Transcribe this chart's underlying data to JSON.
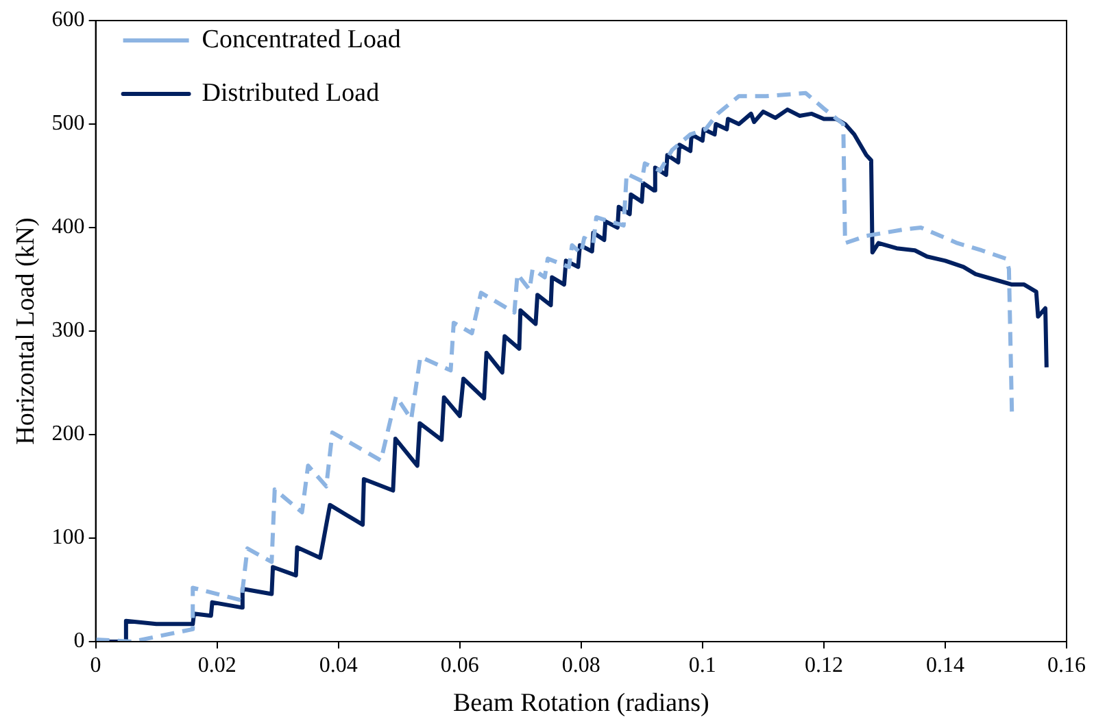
{
  "chart_data": {
    "type": "line",
    "xlabel": "Beam Rotation (radians)",
    "ylabel": "Horizontal Load (kN)",
    "xlim": [
      0,
      0.16
    ],
    "xticks": [
      0,
      0.02,
      0.04,
      0.06,
      0.08,
      0.1,
      0.12,
      0.14,
      0.16
    ],
    "ylim": [
      0,
      600
    ],
    "yticks": [
      0,
      100,
      200,
      300,
      400,
      500,
      600
    ],
    "grid": false,
    "legend": "top left",
    "marker": "none",
    "series": [
      {
        "name": "Concentrated Load",
        "color": "#8db4e2",
        "line_style": "dashed",
        "x": [
          0,
          0.006,
          0.016,
          0.016,
          0.024,
          0.025,
          0.029,
          0.0295,
          0.034,
          0.035,
          0.038,
          0.039,
          0.047,
          0.0495,
          0.052,
          0.0535,
          0.0585,
          0.059,
          0.062,
          0.0635,
          0.069,
          0.0695,
          0.0715,
          0.072,
          0.074,
          0.0745,
          0.078,
          0.0785,
          0.08,
          0.0805,
          0.082,
          0.0825,
          0.087,
          0.0875,
          0.09,
          0.0905,
          0.093,
          0.095,
          0.098,
          0.1005,
          0.1025,
          0.106,
          0.1105,
          0.117,
          0.12,
          0.1232,
          0.1235,
          0.127,
          0.133,
          0.136,
          0.142,
          0.146,
          0.15,
          0.1505,
          0.151
        ],
        "values": [
          2,
          0,
          12,
          52,
          40,
          90,
          77,
          147,
          125,
          170,
          150,
          202,
          175,
          237,
          215,
          275,
          262,
          308,
          298,
          337,
          318,
          355,
          340,
          360,
          352,
          370,
          362,
          383,
          375,
          390,
          385,
          410,
          402,
          452,
          445,
          462,
          455,
          475,
          490,
          495,
          510,
          527,
          527,
          530,
          515,
          500,
          385,
          392,
          398,
          400,
          385,
          378,
          370,
          360,
          218
        ]
      },
      {
        "name": "Distributed Load",
        "color": "#002060",
        "line_style": "solid",
        "x": [
          0,
          0.0048,
          0.005,
          0.01,
          0.016,
          0.0162,
          0.019,
          0.0192,
          0.024,
          0.0242,
          0.029,
          0.0292,
          0.033,
          0.0332,
          0.037,
          0.0386,
          0.044,
          0.0442,
          0.049,
          0.0494,
          0.053,
          0.0534,
          0.057,
          0.0574,
          0.06,
          0.0606,
          0.064,
          0.0644,
          0.067,
          0.0674,
          0.0698,
          0.07,
          0.0725,
          0.0728,
          0.075,
          0.0752,
          0.0772,
          0.0775,
          0.0795,
          0.0798,
          0.0818,
          0.082,
          0.0838,
          0.084,
          0.086,
          0.0862,
          0.088,
          0.0882,
          0.09,
          0.0902,
          0.092,
          0.0922,
          0.094,
          0.0942,
          0.096,
          0.0962,
          0.098,
          0.0982,
          0.1,
          0.1002,
          0.102,
          0.1022,
          0.104,
          0.1042,
          0.106,
          0.108,
          0.1085,
          0.11,
          0.112,
          0.114,
          0.116,
          0.118,
          0.12,
          0.122,
          0.1235,
          0.125,
          0.127,
          0.1278,
          0.128,
          0.129,
          0.132,
          0.135,
          0.137,
          0.14,
          0.143,
          0.145,
          0.148,
          0.151,
          0.153,
          0.155,
          0.1553,
          0.1565,
          0.1567
        ],
        "values": [
          0,
          0,
          20,
          17,
          17,
          27,
          25,
          38,
          33,
          51,
          46,
          72,
          64,
          91,
          81,
          132,
          113,
          157,
          146,
          196,
          170,
          211,
          195,
          236,
          218,
          254,
          235,
          279,
          260,
          295,
          283,
          320,
          307,
          335,
          325,
          352,
          345,
          368,
          362,
          383,
          377,
          395,
          388,
          406,
          400,
          420,
          413,
          432,
          425,
          443,
          436,
          458,
          451,
          470,
          463,
          480,
          474,
          490,
          484,
          495,
          490,
          500,
          495,
          505,
          500,
          510,
          502,
          512,
          506,
          514,
          508,
          510,
          505,
          505,
          500,
          490,
          470,
          465,
          376,
          385,
          380,
          378,
          372,
          368,
          362,
          355,
          350,
          345,
          345,
          338,
          314,
          322,
          265
        ]
      }
    ]
  }
}
